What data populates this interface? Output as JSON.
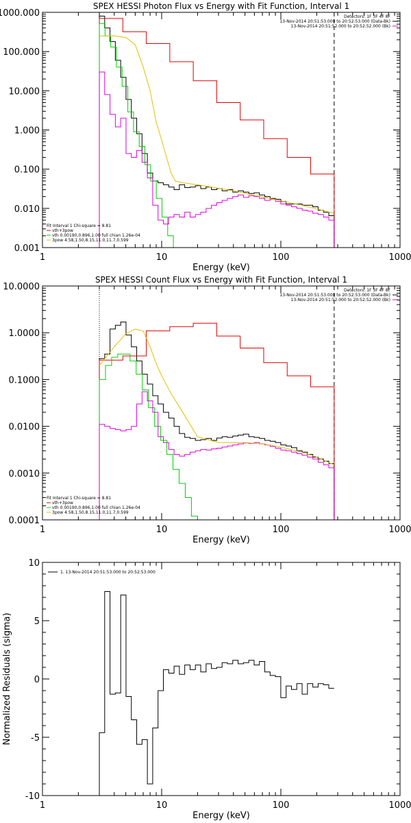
{
  "chart_data": [
    {
      "type": "line",
      "title": "SPEX HESSI Photon Flux vs Energy with Fit Function, Interval 1",
      "xlabel": "Energy (keV)",
      "ylabel": "",
      "xscale": "log",
      "yscale": "log",
      "xlim": [
        1,
        1000
      ],
      "ylim": [
        0.001,
        1000
      ],
      "xticks": [
        {
          "v": 1,
          "label": "1"
        },
        {
          "v": 10,
          "label": "10"
        },
        {
          "v": 100,
          "label": "100"
        },
        {
          "v": 1000,
          "label": "1000"
        }
      ],
      "yticks": [
        {
          "v": 0.001,
          "label": "0.001"
        },
        {
          "v": 0.01,
          "label": "0.010"
        },
        {
          "v": 0.1,
          "label": "0.100"
        },
        {
          "v": 1,
          "label": "1.000"
        },
        {
          "v": 10,
          "label": "10.000"
        },
        {
          "v": 100,
          "label": "100.000"
        },
        {
          "v": 1000,
          "label": "1000.000"
        }
      ],
      "info_lines": [
        "Detectors: 1F 3F 4F 8F",
        "13-Nov-2014 20:51:53.000 to 20:52:53.000 (Data-Bk)",
        "13-Nov-2014 20:51:52.000 to 20:52:52.000 (Bk)"
      ],
      "fit_lines": [
        "Fit Interval  1    Chi-square = 8.81",
        "vth+3pow",
        "vth 0.00190,0.896,1.00  full chian 1.26e-04",
        "3pow 4.58,1.50,8.15,11.0,11.7,0.599"
      ],
      "vlines": [
        {
          "x": 3,
          "style": "dotted",
          "color": "#000000"
        },
        {
          "x": 280,
          "style": "dashed",
          "color": "#000000"
        }
      ],
      "series": [
        {
          "color": "#000000",
          "x_start": 3,
          "x_end": 280,
          "values": [
            800,
            400,
            180,
            60,
            22,
            6,
            2,
            0.8,
            0.25,
            0.08,
            0.05,
            0.045,
            0.04,
            0.035,
            0.03,
            0.04,
            0.034,
            0.035,
            0.038,
            0.032,
            0.035,
            0.03,
            0.032,
            0.028,
            0.03,
            0.026,
            0.028,
            0.026,
            0.024,
            0.025,
            0.022,
            0.02,
            0.018,
            0.017,
            0.015,
            0.013,
            0.013,
            0.013,
            0.012,
            0.012,
            0.011,
            0.009,
            0.008,
            0.0065
          ]
        },
        {
          "color": "#e00000",
          "x_start": 3,
          "x_end": 280,
          "values": [
            700,
            320,
            160,
            55,
            18,
            5,
            1.8,
            0.6,
            0.2,
            0.075
          ]
        },
        {
          "color": "#00d000",
          "x_start": 3,
          "x_end": 14,
          "values": [
            520,
            250,
            130,
            40,
            13,
            2.9,
            0.9,
            0.38,
            0.13,
            0.05,
            0.018,
            0.006,
            0.002,
            0.0008
          ]
        },
        {
          "color": "#e000e0",
          "x_start": 3,
          "x_end": 280,
          "values": [
            30,
            8,
            2.5,
            1.2,
            2.0,
            0.25,
            0.2,
            0.3,
            0.15,
            0.06,
            0.012,
            0.005,
            0.004,
            0.006,
            0.007,
            0.006,
            0.008,
            0.006,
            0.007,
            0.008,
            0.01,
            0.012,
            0.014,
            0.016,
            0.018,
            0.02,
            0.022,
            0.019,
            0.021,
            0.02,
            0.018,
            0.016,
            0.017,
            0.015,
            0.013,
            0.012,
            0.011,
            0.01,
            0.009,
            0.0085,
            0.0075,
            0.007,
            0.006,
            0.005
          ]
        },
        {
          "color": "#e0c000",
          "x_start": 3,
          "x_end": 280,
          "smooth": true,
          "points": [
            [
              3,
              250
            ],
            [
              4,
              250
            ],
            [
              5,
              230
            ],
            [
              6,
              150
            ],
            [
              7,
              40
            ],
            [
              8,
              10
            ],
            [
              9,
              1.6
            ],
            [
              10,
              0.55
            ],
            [
              11,
              0.2
            ],
            [
              12,
              0.08
            ],
            [
              13,
              0.05
            ],
            [
              15,
              0.045
            ],
            [
              20,
              0.04
            ],
            [
              40,
              0.028
            ],
            [
              80,
              0.018
            ],
            [
              150,
              0.012
            ],
            [
              280,
              0.0075
            ]
          ]
        }
      ]
    },
    {
      "type": "line",
      "title": "SPEX HESSI Count Flux vs Energy with Fit Function, Interval 1",
      "xlabel": "Energy (keV)",
      "ylabel": "",
      "xscale": "log",
      "yscale": "log",
      "xlim": [
        1,
        1000
      ],
      "ylim": [
        0.0001,
        10
      ],
      "xticks": [
        {
          "v": 1,
          "label": "1"
        },
        {
          "v": 10,
          "label": "10"
        },
        {
          "v": 100,
          "label": "100"
        },
        {
          "v": 1000,
          "label": "1000"
        }
      ],
      "yticks": [
        {
          "v": 0.0001,
          "label": "0.0001"
        },
        {
          "v": 0.001,
          "label": "0.0010"
        },
        {
          "v": 0.01,
          "label": "0.0100"
        },
        {
          "v": 0.1,
          "label": "0.1000"
        },
        {
          "v": 1,
          "label": "1.0000"
        },
        {
          "v": 10,
          "label": "10.0000"
        }
      ],
      "info_lines": [
        "Detectors: 1F 3F 4F 8F",
        "13-Nov-2014 20:51:53.000 to 20:52:53.000 (Data-Bk)",
        "13-Nov-2014 20:51:52.000 to 20:52:52.000 (Bk)"
      ],
      "fit_lines": [
        "Fit Interval  1    Chi-square = 8.81",
        "vth+3pow",
        "vth 0.00190,0.896,1.00  full chian 1.26e-04",
        "3pow 4.58,1.50,8.15,11.0,11.7,0.599"
      ],
      "vlines": [
        {
          "x": 3,
          "style": "dotted",
          "color": "#000000"
        },
        {
          "x": 280,
          "style": "dashed",
          "color": "#000000"
        }
      ],
      "series": [
        {
          "color": "#000000",
          "x_start": 3,
          "x_end": 280,
          "values": [
            0.28,
            0.35,
            1.2,
            1.45,
            1.7,
            0.9,
            0.5,
            0.25,
            0.13,
            0.08,
            0.045,
            0.03,
            0.02,
            0.015,
            0.01,
            0.007,
            0.0058,
            0.0055,
            0.005,
            0.0052,
            0.0055,
            0.005,
            0.0056,
            0.006,
            0.0058,
            0.0062,
            0.0065,
            0.0068,
            0.006,
            0.0058,
            0.0055,
            0.005,
            0.0048,
            0.0045,
            0.004,
            0.0038,
            0.0035,
            0.003,
            0.0028,
            0.0025,
            0.0022,
            0.002,
            0.0018,
            0.0016
          ]
        },
        {
          "color": "#e00000",
          "x_start": 3,
          "x_end": 280,
          "values": [
            0.26,
            0.32,
            1.1,
            1.35,
            1.6,
            0.85,
            0.47,
            0.23,
            0.12,
            0.07
          ]
        },
        {
          "color": "#00d000",
          "x_start": 3,
          "x_end": 20,
          "values": [
            0.1,
            0.2,
            0.3,
            0.35,
            0.35,
            0.25,
            0.13,
            0.06,
            0.025,
            0.01,
            0.005,
            0.0025,
            0.0012,
            0.0006,
            0.0003,
            0.00012
          ]
        },
        {
          "color": "#e000e0",
          "x_start": 3,
          "x_end": 280,
          "values": [
            0.011,
            0.01,
            0.009,
            0.0085,
            0.008,
            0.0085,
            0.01,
            0.03,
            0.055,
            0.035,
            0.02,
            0.006,
            0.0045,
            0.0032,
            0.0025,
            0.0023,
            0.0025,
            0.0028,
            0.003,
            0.0032,
            0.0031,
            0.0033,
            0.0034,
            0.0036,
            0.0038,
            0.004,
            0.0042,
            0.0044,
            0.0043,
            0.0045,
            0.0042,
            0.004,
            0.0037,
            0.0034,
            0.0031,
            0.003,
            0.0028,
            0.0026,
            0.0024,
            0.0022,
            0.002,
            0.0017,
            0.0015,
            0.0013
          ]
        },
        {
          "color": "#e0c000",
          "x_start": 3,
          "x_end": 280,
          "smooth": true,
          "points": [
            [
              3,
              0.2
            ],
            [
              4,
              0.5
            ],
            [
              5,
              0.95
            ],
            [
              6,
              1.2
            ],
            [
              7,
              1.1
            ],
            [
              8,
              0.5
            ],
            [
              9,
              0.22
            ],
            [
              10,
              0.12
            ],
            [
              12,
              0.05
            ],
            [
              15,
              0.02
            ],
            [
              20,
              0.006
            ],
            [
              30,
              0.0045
            ],
            [
              50,
              0.0045
            ],
            [
              70,
              0.0042
            ],
            [
              100,
              0.0036
            ],
            [
              150,
              0.0028
            ],
            [
              200,
              0.0022
            ],
            [
              280,
              0.0015
            ]
          ]
        }
      ]
    },
    {
      "type": "line",
      "title": "",
      "xlabel": "Energy (keV)",
      "ylabel": "Normalized Residuals (sigma)",
      "xscale": "log",
      "yscale": "linear",
      "xlim": [
        1,
        1000
      ],
      "ylim": [
        -10,
        10
      ],
      "xticks": [
        {
          "v": 1,
          "label": "1"
        },
        {
          "v": 10,
          "label": "10"
        },
        {
          "v": 100,
          "label": "100"
        },
        {
          "v": 1000,
          "label": "1000"
        }
      ],
      "yticks": [
        {
          "v": -10,
          "label": "-10"
        },
        {
          "v": -5,
          "label": "-5"
        },
        {
          "v": 0,
          "label": "0"
        },
        {
          "v": 5,
          "label": "5"
        },
        {
          "v": 10,
          "label": "10"
        }
      ],
      "legend": [
        "1. 13-Nov-2014 20:51:53.000 to 20:52:53.000"
      ],
      "series": [
        {
          "color": "#000000",
          "x_start": 3,
          "x_end": 280,
          "values": [
            -4.6,
            7.5,
            -1.3,
            -1.2,
            7.2,
            -1.5,
            -3.5,
            -5.6,
            -5.2,
            -9.0,
            -4.2,
            -1.0,
            0.8,
            0.5,
            1.1,
            0.4,
            1.2,
            0.8,
            1.2,
            0.6,
            1.3,
            0.9,
            1.0,
            1.4,
            1.3,
            1.6,
            1.3,
            1.4,
            1.6,
            1.2,
            1.5,
            0.6,
            0.3,
            0.2,
            -1.6,
            -0.6,
            -0.9,
            -0.4,
            -1.3,
            -0.4,
            -0.7,
            -0.4,
            -0.5,
            -0.8
          ]
        }
      ]
    }
  ]
}
